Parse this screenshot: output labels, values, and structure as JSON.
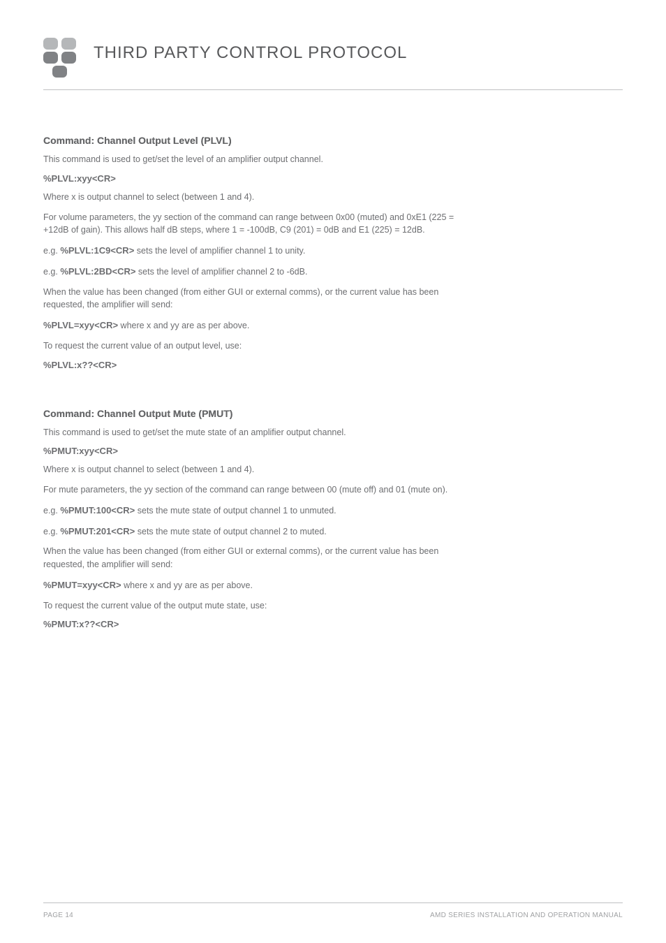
{
  "header": {
    "title": "THIRD PARTY CONTROL PROTOCOL",
    "title_color": "#58595b",
    "title_fontsize": 24,
    "logo": {
      "squares": [
        {
          "color": "#b5b7b9"
        },
        {
          "color": "#b5b7b9"
        },
        {
          "color": "#808285"
        },
        {
          "color": "#808285"
        },
        {
          "color": "#808285"
        }
      ]
    }
  },
  "sections": [
    {
      "heading": "Command: Channel Output Level (PLVL)",
      "intro": "This command is used to get/set the level of an amplifier output channel.",
      "syntax": "%PLVL:xyy<CR>",
      "where": "Where x is output channel to select (between 1 and 4).",
      "params": "For volume parameters, the yy section of the command can range between 0x00 (muted) and 0xE1 (225 = +12dB of gain). This allows half dB steps, where 1 = -100dB, C9 (201) = 0dB and E1 (225) = 12dB.",
      "examples": [
        {
          "prefix": "e.g.  ",
          "cmd": "%PLVL:1C9<CR>",
          "suffix": " sets the level of amplifier channel 1 to unity."
        },
        {
          "prefix": "e.g. ",
          "cmd": "%PLVL:2BD<CR>",
          "suffix": " sets the level of amplifier channel 2 to -6dB."
        }
      ],
      "changed": "When the value has been changed (from either GUI or external comms), or the current value has been requested, the amplifier will send:",
      "response": {
        "cmd": "%PLVL=xyy<CR>",
        "suffix": " where x and yy are as per above."
      },
      "request_intro": "To request the current value of an output level, use:",
      "request": "%PLVL:x??<CR>"
    },
    {
      "heading": "Command: Channel Output Mute (PMUT)",
      "intro": "This command is used to get/set the mute state of an amplifier output channel.",
      "syntax": "%PMUT:xyy<CR>",
      "where": "Where x is output channel to select (between 1 and 4).",
      "params": "For mute parameters, the yy section of the command can range between 00 (mute off) and 01 (mute on).",
      "examples": [
        {
          "prefix": "e.g. ",
          "cmd": "%PMUT:100<CR>",
          "suffix": " sets the mute state of output channel 1 to unmuted."
        },
        {
          "prefix": "e.g. ",
          "cmd": "%PMUT:201<CR>",
          "suffix": " sets the mute state of output channel 2 to muted."
        }
      ],
      "changed": "When the value has been changed (from either GUI or external comms), or the current value has been requested, the amplifier will send:",
      "response": {
        "cmd": "%PMUT=xyy<CR>",
        "suffix": " where x and yy are as per above."
      },
      "request_intro": "To request the current value of the output mute state, use:",
      "request": "%PMUT:x??<CR>"
    }
  ],
  "footer": {
    "left": "PAGE 14",
    "right": "AMD SERIES INSTALLATION AND OPERATION MANUAL"
  },
  "colors": {
    "text": "#6d6e71",
    "heading": "#636466",
    "rule": "#bfc0c2",
    "footer_text": "#9fa1a3",
    "background": "#ffffff"
  },
  "typography": {
    "body_fontsize": 12.5,
    "heading_fontsize": 14,
    "mono_fontsize": 13,
    "footer_fontsize": 10
  }
}
